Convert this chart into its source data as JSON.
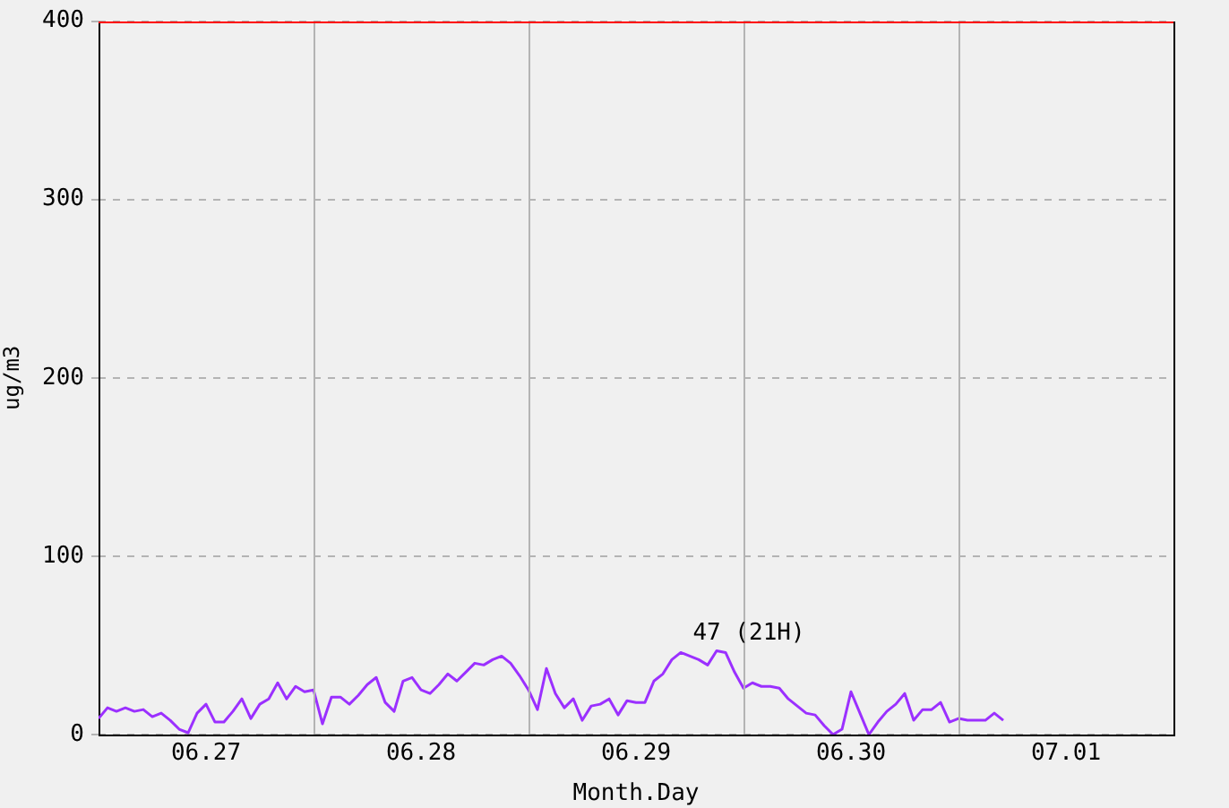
{
  "chart_data": {
    "type": "line",
    "xlabel": "Month.Day",
    "ylabel": "ug/m3",
    "x": [
      "--06-27T00:00",
      "--06-27T01:00",
      "--06-27T02:00",
      "--06-27T03:00",
      "--06-27T04:00",
      "--06-27T05:00",
      "--06-27T06:00",
      "--06-27T07:00",
      "--06-27T08:00",
      "--06-27T09:00",
      "--06-27T10:00",
      "--06-27T11:00",
      "--06-27T12:00",
      "--06-27T13:00",
      "--06-27T14:00",
      "--06-27T15:00",
      "--06-27T16:00",
      "--06-27T17:00",
      "--06-27T18:00",
      "--06-27T19:00",
      "--06-27T20:00",
      "--06-27T21:00",
      "--06-27T22:00",
      "--06-27T23:00",
      "--06-28T00:00",
      "--06-28T01:00",
      "--06-28T02:00",
      "--06-28T03:00",
      "--06-28T04:00",
      "--06-28T05:00",
      "--06-28T06:00",
      "--06-28T07:00",
      "--06-28T08:00",
      "--06-28T09:00",
      "--06-28T10:00",
      "--06-28T11:00",
      "--06-28T12:00",
      "--06-28T13:00",
      "--06-28T14:00",
      "--06-28T15:00",
      "--06-28T16:00",
      "--06-28T17:00",
      "--06-28T18:00",
      "--06-28T19:00",
      "--06-28T20:00",
      "--06-28T21:00",
      "--06-28T22:00",
      "--06-28T23:00",
      "--06-29T00:00",
      "--06-29T01:00",
      "--06-29T02:00",
      "--06-29T03:00",
      "--06-29T04:00",
      "--06-29T05:00",
      "--06-29T06:00",
      "--06-29T07:00",
      "--06-29T08:00",
      "--06-29T09:00",
      "--06-29T10:00",
      "--06-29T11:00",
      "--06-29T12:00",
      "--06-29T13:00",
      "--06-29T14:00",
      "--06-29T15:00",
      "--06-29T16:00",
      "--06-29T17:00",
      "--06-29T18:00",
      "--06-29T19:00",
      "--06-29T20:00",
      "--06-29T21:00",
      "--06-29T22:00",
      "--06-29T23:00",
      "--06-30T00:00",
      "--06-30T01:00",
      "--06-30T02:00",
      "--06-30T03:00",
      "--06-30T04:00",
      "--06-30T05:00",
      "--06-30T06:00",
      "--06-30T07:00",
      "--06-30T08:00",
      "--06-30T09:00",
      "--06-30T10:00",
      "--06-30T11:00",
      "--06-30T12:00",
      "--06-30T13:00",
      "--06-30T14:00",
      "--06-30T15:00",
      "--06-30T16:00",
      "--06-30T17:00",
      "--06-30T18:00",
      "--06-30T19:00",
      "--06-30T20:00",
      "--06-30T21:00",
      "--06-30T22:00",
      "--06-30T23:00",
      "--07-01T00:00",
      "--07-01T01:00",
      "--07-01T02:00",
      "--07-01T03:00",
      "--07-01T04:00",
      "--07-01T05:00"
    ],
    "series": [
      {
        "color": "#9b30ff",
        "values": [
          9,
          15,
          13,
          15,
          13,
          14,
          10,
          12,
          8,
          3,
          1,
          12,
          17,
          7,
          7,
          13,
          20,
          9,
          17,
          20,
          29,
          20,
          27,
          24,
          25,
          6,
          21,
          21,
          17,
          22,
          28,
          32,
          18,
          13,
          30,
          32,
          25,
          23,
          28,
          34,
          30,
          35,
          40,
          39,
          42,
          44,
          40,
          33,
          25,
          14,
          37,
          23,
          15,
          20,
          8,
          16,
          17,
          20,
          11,
          19,
          18,
          18,
          30,
          34,
          42,
          46,
          44,
          42,
          39,
          47,
          46,
          35,
          26,
          29,
          27,
          27,
          26,
          20,
          16,
          12,
          11,
          5,
          0,
          3,
          24,
          12,
          0,
          7,
          13,
          17,
          23,
          8,
          14,
          14,
          18,
          7,
          9,
          8,
          8,
          8,
          12,
          8
        ]
      }
    ],
    "xlim": [
      "--06-27T00:00",
      "--07-02T00:00"
    ],
    "xticks": [
      {
        "value": "--06-27T12:00",
        "label": "06.27"
      },
      {
        "value": "--06-28T12:00",
        "label": "06.28"
      },
      {
        "value": "--06-29T12:00",
        "label": "06.29"
      },
      {
        "value": "--06-30T12:00",
        "label": "06.30"
      },
      {
        "value": "--07-01T12:00",
        "label": "07.01"
      }
    ],
    "ylim": [
      0,
      400
    ],
    "yticks": [
      0,
      100,
      200,
      300,
      400
    ],
    "grid": "y",
    "marker": "none",
    "legend": false,
    "ref_lines": [
      {
        "axis": "x",
        "value": "--06-28T00:00",
        "color": "#b4b4b4"
      },
      {
        "axis": "x",
        "value": "--06-29T00:00",
        "color": "#b4b4b4"
      },
      {
        "axis": "x",
        "value": "--06-30T00:00",
        "color": "#b4b4b4"
      },
      {
        "axis": "x",
        "value": "--07-01T00:00",
        "color": "#b4b4b4"
      },
      {
        "axis": "y",
        "value": 400,
        "color": "#ff0000"
      }
    ],
    "annotations": [
      {
        "text": "47 (21H)",
        "x": "--06-29T21:00",
        "y": 47
      }
    ]
  }
}
